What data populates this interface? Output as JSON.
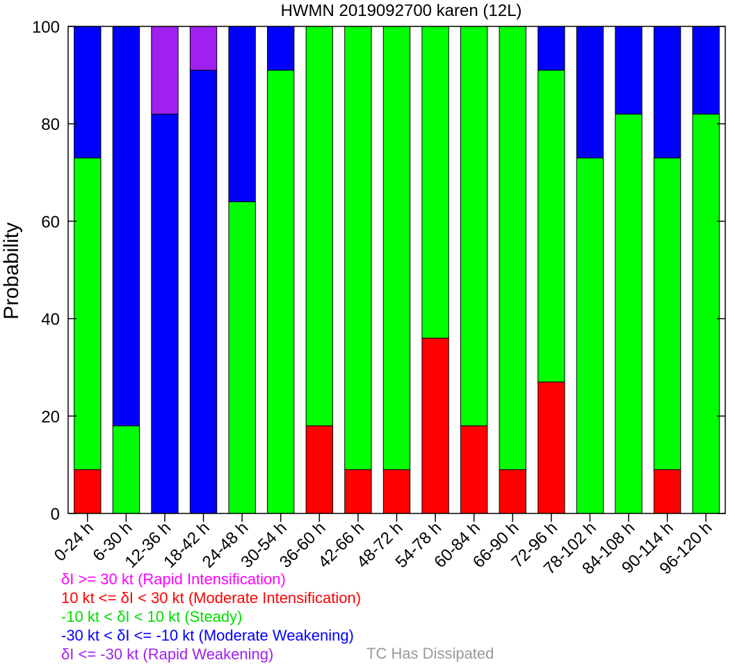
{
  "chart_data": {
    "type": "bar",
    "stacked": true,
    "title": "HWMN 2019092700 karen (12L)",
    "xlabel": "",
    "ylabel": "Probability",
    "ylim": [
      0,
      100
    ],
    "yticks": [
      0,
      20,
      40,
      60,
      80,
      100
    ],
    "grid": false,
    "categories": [
      "0-24 h",
      "6-30 h",
      "12-36 h",
      "18-42 h",
      "24-48 h",
      "30-54 h",
      "36-60 h",
      "42-66 h",
      "48-72 h",
      "54-78 h",
      "60-84 h",
      "66-90 h",
      "72-96 h",
      "78-102 h",
      "84-108 h",
      "90-114 h",
      "96-120 h"
    ],
    "series": [
      {
        "name": "Moderate Intensification",
        "color": "#ff0000",
        "values": [
          9,
          0,
          0,
          0,
          0,
          0,
          18,
          9,
          9,
          36,
          18,
          9,
          27,
          0,
          0,
          9,
          0
        ]
      },
      {
        "name": "Steady",
        "color": "#00ff00",
        "values": [
          64,
          18,
          0,
          0,
          64,
          91,
          82,
          91,
          91,
          64,
          82,
          91,
          64,
          73,
          82,
          64,
          82
        ]
      },
      {
        "name": "Moderate Weakening",
        "color": "#0000ff",
        "values": [
          27,
          82,
          82,
          91,
          36,
          9,
          0,
          0,
          0,
          0,
          0,
          0,
          9,
          27,
          18,
          27,
          18
        ]
      },
      {
        "name": "Rapid Weakening",
        "color": "#a020f0",
        "values": [
          0,
          0,
          18,
          9,
          0,
          0,
          0,
          0,
          0,
          0,
          0,
          0,
          0,
          0,
          0,
          0,
          0
        ]
      }
    ]
  },
  "legend": {
    "items": [
      {
        "text": "δI >= 30 kt (Rapid Intensification)",
        "color": "#ff00ff"
      },
      {
        "text": "10 kt <= δI < 30 kt (Moderate Intensification)",
        "color": "#ff0000"
      },
      {
        "text": "-10 kt < δI < 10 kt (Steady)",
        "color": "#00dd00"
      },
      {
        "text": "-30 kt < δI <= -10 kt (Moderate Weakening)",
        "color": "#0000ff"
      },
      {
        "text": "δI <= -30 kt (Rapid Weakening)",
        "color": "#a020f0"
      }
    ],
    "dissipated": {
      "text": "TC Has Dissipated",
      "color": "#999999"
    }
  }
}
